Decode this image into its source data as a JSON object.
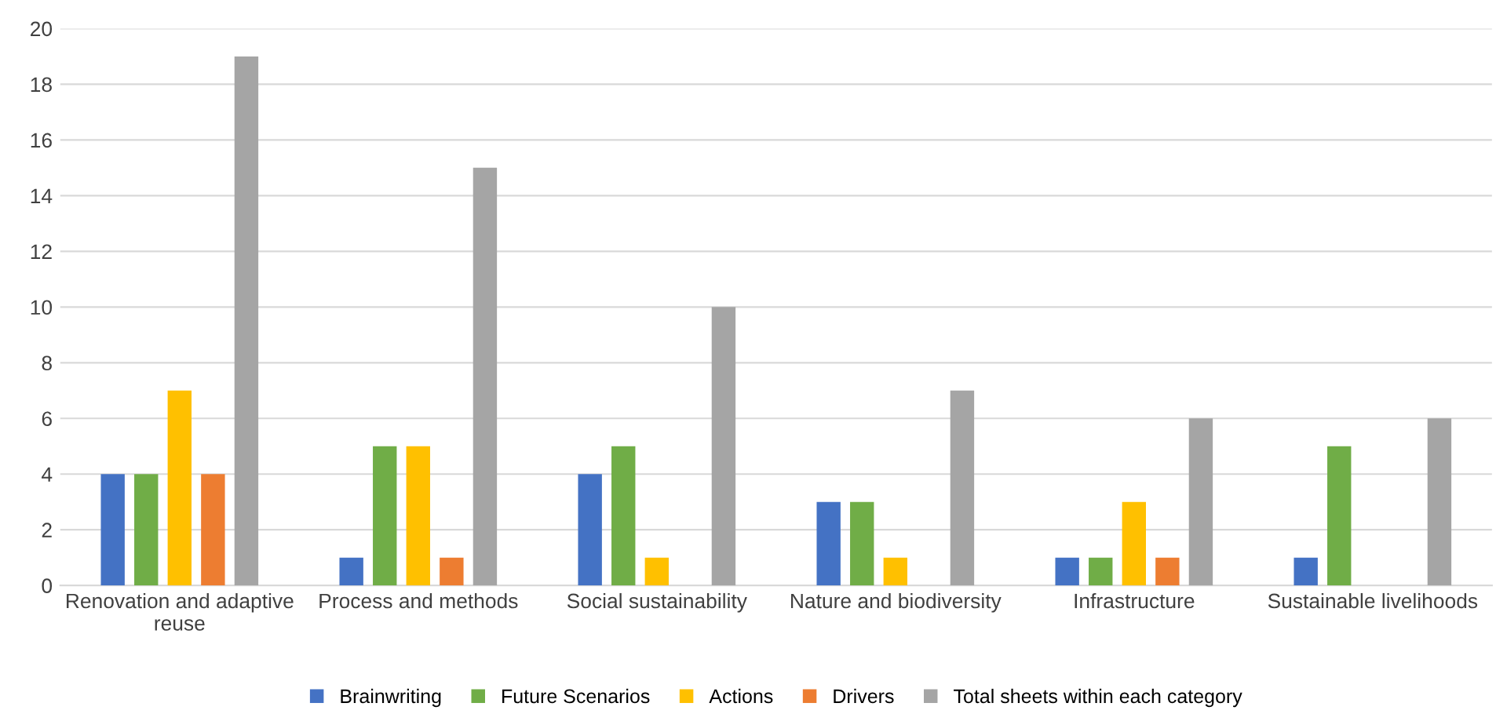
{
  "chart_data": {
    "type": "bar",
    "categories": [
      "Renovation and adaptive reuse",
      "Process and methods",
      "Social sustainability",
      "Nature and biodiversity",
      "Infrastructure",
      "Sustainable livelihoods"
    ],
    "series": [
      {
        "name": "Brainwriting",
        "color": "#4472c4",
        "values": [
          4,
          1,
          4,
          3,
          1,
          1
        ]
      },
      {
        "name": "Future Scenarios",
        "color": "#70ad47",
        "values": [
          4,
          5,
          5,
          3,
          1,
          5
        ]
      },
      {
        "name": "Actions",
        "color": "#ffc000",
        "values": [
          7,
          5,
          1,
          1,
          3,
          0
        ]
      },
      {
        "name": "Drivers",
        "color": "#ed7d31",
        "values": [
          4,
          1,
          0,
          0,
          1,
          0
        ]
      },
      {
        "name": "Total sheets within each category",
        "color": "#a5a5a5",
        "values": [
          19,
          15,
          10,
          7,
          6,
          6
        ]
      }
    ],
    "ylim": [
      0,
      20
    ],
    "yticks": [
      0,
      2,
      4,
      6,
      8,
      10,
      12,
      14,
      16,
      18,
      20
    ],
    "grid": "y",
    "legend": "bottom"
  }
}
